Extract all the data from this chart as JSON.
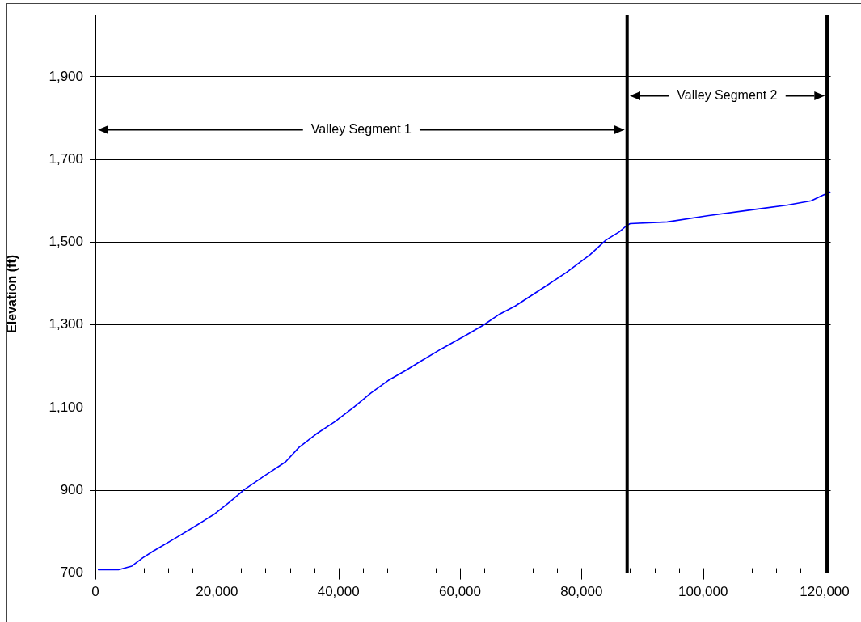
{
  "chart_data": {
    "type": "line",
    "ylabel": "Elevation (ft)",
    "x": [
      500,
      3800,
      6000,
      7800,
      9500,
      13100,
      16600,
      19700,
      22100,
      24500,
      28000,
      31300,
      33500,
      36300,
      39400,
      42500,
      45300,
      48200,
      51300,
      53500,
      56800,
      61200,
      64000,
      66500,
      69100,
      73500,
      77500,
      81400,
      84000,
      86200,
      87500,
      88000,
      94100,
      100700,
      107300,
      113900,
      117800,
      119600,
      120900
    ],
    "series": [
      {
        "color": "#0000ff",
        "values": [
          708,
          708,
          717,
          737,
          753,
          784,
          815,
          844,
          872,
          902,
          937,
          969,
          1004,
          1036,
          1066,
          1101,
          1135,
          1166,
          1192,
          1212,
          1241,
          1277,
          1301,
          1326,
          1346,
          1388,
          1427,
          1470,
          1505,
          1525,
          1541,
          1545,
          1549,
          1564,
          1577,
          1590,
          1600,
          1613,
          1621
        ]
      }
    ],
    "xlim": [
      0,
      121000
    ],
    "xticks": [
      0,
      {
        "value": 4000,
        "label": null
      },
      {
        "value": 8000,
        "label": null
      },
      {
        "value": 12000,
        "label": null
      },
      {
        "value": 16000,
        "label": null
      },
      {
        "value": 20000,
        "label": "20,000"
      },
      {
        "value": 24000,
        "label": null
      },
      {
        "value": 28000,
        "label": null
      },
      {
        "value": 32000,
        "label": null
      },
      {
        "value": 36000,
        "label": null
      },
      {
        "value": 40000,
        "label": "40,000"
      },
      {
        "value": 44000,
        "label": null
      },
      {
        "value": 48000,
        "label": null
      },
      {
        "value": 52000,
        "label": null
      },
      {
        "value": 56000,
        "label": null
      },
      {
        "value": 60000,
        "label": "60,000"
      },
      {
        "value": 64000,
        "label": null
      },
      {
        "value": 68000,
        "label": null
      },
      {
        "value": 72000,
        "label": null
      },
      {
        "value": 76000,
        "label": null
      },
      {
        "value": 80000,
        "label": "80,000"
      },
      {
        "value": 84000,
        "label": null
      },
      {
        "value": 88000,
        "label": null
      },
      {
        "value": 92000,
        "label": null
      },
      {
        "value": 96000,
        "label": null
      },
      {
        "value": 100000,
        "label": "100,000"
      },
      {
        "value": 104000,
        "label": null
      },
      {
        "value": 108000,
        "label": null
      },
      {
        "value": 112000,
        "label": null
      },
      {
        "value": 116000,
        "label": null
      },
      {
        "value": 120000,
        "label": "120,000"
      }
    ],
    "ylim": [
      700,
      2050
    ],
    "yticks": [
      700,
      900,
      {
        "value": 1100,
        "label": "1,100"
      },
      {
        "value": 1300,
        "label": "1,300"
      },
      {
        "value": 1500,
        "label": "1,500"
      },
      {
        "value": 1700,
        "label": "1,700"
      },
      {
        "value": 1900,
        "label": "1,900"
      }
    ],
    "grid": "y",
    "ref_lines": [
      {
        "axis": "x",
        "value": 87500,
        "color": "#000000"
      },
      {
        "axis": "x",
        "value": 120400,
        "color": "#000000"
      }
    ],
    "annotations": [
      "Valley Segment 1",
      "Valley Segment 2"
    ]
  }
}
